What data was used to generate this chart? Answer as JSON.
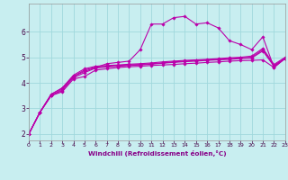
{
  "xlabel": "Windchill (Refroidissement éolien,°C)",
  "bg_color": "#c8eef0",
  "line_color": "#bb00aa",
  "grid_color": "#a0d8dc",
  "axis_color": "#880088",
  "xlim": [
    0,
    23
  ],
  "ylim": [
    1.75,
    7.1
  ],
  "yticks": [
    2,
    3,
    4,
    5,
    6
  ],
  "xticks": [
    0,
    1,
    2,
    3,
    4,
    5,
    6,
    7,
    8,
    9,
    10,
    11,
    12,
    13,
    14,
    15,
    16,
    17,
    18,
    19,
    20,
    21,
    22,
    23
  ],
  "lines": [
    [
      2.0,
      2.85,
      3.5,
      3.65,
      4.15,
      4.25,
      4.5,
      4.55,
      4.6,
      4.63,
      4.65,
      4.68,
      4.7,
      4.72,
      4.75,
      4.77,
      4.8,
      4.82,
      4.85,
      4.87,
      4.88,
      4.9,
      4.6,
      4.95
    ],
    [
      2.0,
      2.85,
      3.5,
      3.7,
      4.2,
      4.4,
      4.58,
      4.62,
      4.65,
      4.68,
      4.7,
      4.73,
      4.77,
      4.8,
      4.83,
      4.85,
      4.88,
      4.9,
      4.92,
      4.95,
      4.97,
      5.25,
      4.65,
      4.95
    ],
    [
      2.0,
      2.85,
      3.5,
      3.75,
      4.25,
      4.5,
      4.62,
      4.65,
      4.68,
      4.7,
      4.72,
      4.75,
      4.78,
      4.82,
      4.85,
      4.88,
      4.9,
      4.92,
      4.95,
      4.98,
      5.0,
      5.3,
      4.68,
      4.97
    ],
    [
      2.0,
      2.85,
      3.55,
      3.8,
      4.3,
      4.55,
      4.65,
      4.68,
      4.7,
      4.73,
      4.75,
      4.78,
      4.82,
      4.85,
      4.88,
      4.9,
      4.92,
      4.95,
      4.98,
      5.0,
      5.05,
      5.35,
      4.72,
      5.0
    ],
    [
      2.0,
      2.85,
      3.55,
      3.8,
      4.25,
      4.45,
      4.6,
      4.75,
      4.8,
      4.85,
      5.3,
      6.3,
      6.3,
      6.55,
      6.6,
      6.3,
      6.35,
      6.15,
      5.65,
      5.5,
      5.3,
      5.8,
      4.6,
      4.97
    ]
  ]
}
